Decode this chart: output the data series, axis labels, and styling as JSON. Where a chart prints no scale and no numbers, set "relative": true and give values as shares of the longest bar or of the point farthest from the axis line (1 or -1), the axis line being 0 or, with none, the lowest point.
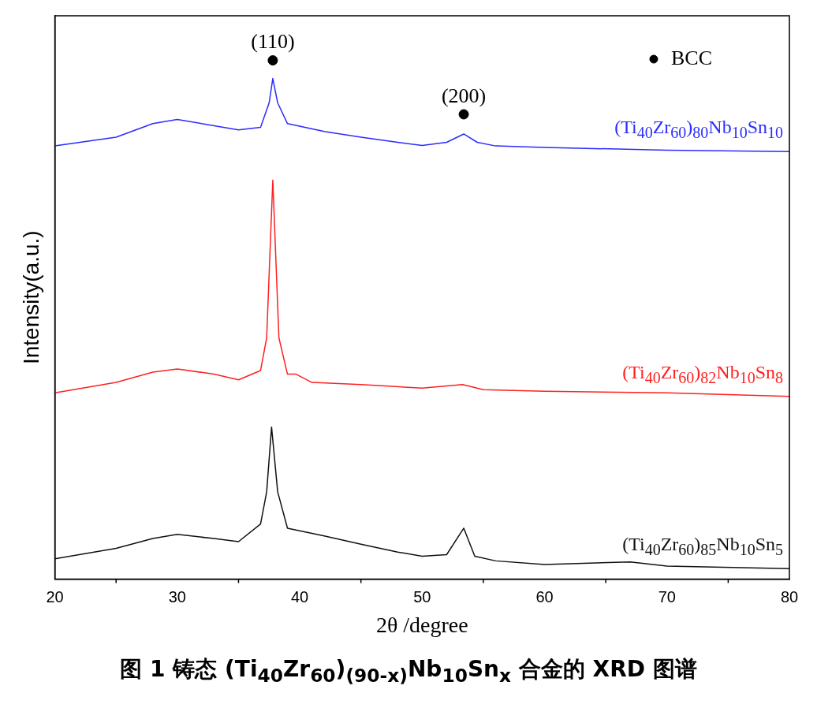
{
  "chart_data": {
    "type": "line",
    "relative": true,
    "xlabel": "2θ /degree",
    "ylabel": "Intensity(a.u.)",
    "xlim": [
      20,
      80
    ],
    "xticks": [
      20,
      30,
      40,
      50,
      60,
      70,
      80
    ],
    "grid": false,
    "legend": "top right",
    "marker": "none",
    "series": [
      {
        "name": "(Ti$_{40}$Zr$_{60}$)$_{80}$Nb$_{10}$Sn$_{10}$",
        "color": "#2b2bff",
        "x": [
          20,
          25,
          28,
          30,
          33,
          35,
          36.8,
          37.5,
          37.8,
          38.2,
          39,
          42,
          45,
          48,
          50,
          52,
          53.4,
          54.5,
          56,
          60,
          70,
          80
        ],
        "values": [
          0.835,
          0.852,
          0.878,
          0.886,
          0.874,
          0.866,
          0.871,
          0.918,
          0.965,
          0.918,
          0.878,
          0.863,
          0.852,
          0.842,
          0.836,
          0.842,
          0.858,
          0.842,
          0.835,
          0.832,
          0.827,
          0.824
        ]
      },
      {
        "name": "(Ti$_{40}$Zr$_{60}$)$_{82}$Nb$_{10}$Sn$_{8}$",
        "color": "#ff2020",
        "x": [
          20,
          25,
          28,
          30,
          33,
          35,
          36.8,
          37.3,
          37.8,
          38.3,
          39,
          39.7,
          41,
          45,
          50,
          53.3,
          55,
          60,
          70,
          80
        ],
        "values": [
          0.359,
          0.379,
          0.399,
          0.405,
          0.395,
          0.384,
          0.402,
          0.465,
          0.769,
          0.465,
          0.395,
          0.395,
          0.379,
          0.375,
          0.368,
          0.375,
          0.365,
          0.362,
          0.359,
          0.352
        ]
      },
      {
        "name": "(Ti$_{40}$Zr$_{60}$)$_{85}$Nb$_{10}$Sn$_{5}$",
        "color": "#111111",
        "x": [
          20,
          25,
          28,
          30,
          33,
          35,
          36.8,
          37.3,
          37.7,
          38.2,
          39,
          42,
          45,
          48,
          50,
          52,
          53.4,
          54.3,
          56,
          60,
          67,
          70,
          80
        ],
        "values": [
          0.039,
          0.059,
          0.078,
          0.086,
          0.078,
          0.072,
          0.106,
          0.168,
          0.293,
          0.168,
          0.098,
          0.083,
          0.067,
          0.052,
          0.044,
          0.047,
          0.098,
          0.044,
          0.035,
          0.028,
          0.033,
          0.025,
          0.02
        ]
      },
      {
        "name": "BCC",
        "type": "scatter",
        "marker": "circle",
        "color": "#000000",
        "x": [
          37.8,
          53.4
        ],
        "values": [
          1.0,
          0.896
        ]
      }
    ],
    "annotations": [
      "(110)",
      "(200)",
      "图 1  铸态 (Ti$_{40}$Zr$_{60}$)$_{(90-x)}$Nb$_{10}$Sn$_{x}$ 合金的 XRD 图谱"
    ]
  }
}
